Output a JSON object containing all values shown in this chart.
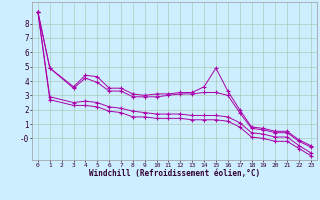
{
  "xlabel": "Windchill (Refroidissement éolien,°C)",
  "bg_color": "#cceeff",
  "grid_color": "#aaccbb",
  "line_color": "#aa00aa",
  "x": [
    0,
    1,
    2,
    3,
    4,
    5,
    6,
    7,
    8,
    9,
    10,
    11,
    12,
    13,
    14,
    15,
    16,
    17,
    18,
    19,
    20,
    21,
    22,
    23
  ],
  "line1": [
    8.8,
    4.9,
    null,
    3.6,
    4.4,
    4.3,
    3.5,
    3.5,
    3.1,
    3.0,
    3.1,
    3.1,
    3.2,
    3.2,
    3.6,
    4.9,
    3.3,
    2.0,
    0.8,
    0.7,
    0.5,
    0.5,
    -0.1,
    -0.5
  ],
  "line2": [
    8.8,
    4.9,
    null,
    3.5,
    4.2,
    3.9,
    3.3,
    3.3,
    2.9,
    2.9,
    2.9,
    3.0,
    3.1,
    3.1,
    3.2,
    3.2,
    3.0,
    1.8,
    0.7,
    0.6,
    0.4,
    0.4,
    -0.2,
    -0.6
  ],
  "line3": [
    8.8,
    2.9,
    null,
    2.5,
    2.6,
    2.5,
    2.2,
    2.1,
    1.9,
    1.8,
    1.7,
    1.7,
    1.7,
    1.6,
    1.6,
    1.6,
    1.5,
    1.1,
    0.4,
    0.3,
    0.1,
    0.1,
    -0.5,
    -1.0
  ],
  "line4": [
    8.8,
    2.7,
    null,
    2.3,
    2.3,
    2.2,
    1.9,
    1.8,
    1.5,
    1.5,
    1.4,
    1.4,
    1.4,
    1.3,
    1.3,
    1.3,
    1.2,
    0.8,
    0.1,
    0.0,
    -0.2,
    -0.2,
    -0.7,
    -1.2
  ],
  "xlim": [
    -0.5,
    23.5
  ],
  "ylim": [
    -1.5,
    9.5
  ],
  "yticks": [
    0,
    1,
    2,
    3,
    4,
    5,
    6,
    7,
    8
  ],
  "xticks": [
    0,
    1,
    2,
    3,
    4,
    5,
    6,
    7,
    8,
    9,
    10,
    11,
    12,
    13,
    14,
    15,
    16,
    17,
    18,
    19,
    20,
    21,
    22,
    23
  ]
}
